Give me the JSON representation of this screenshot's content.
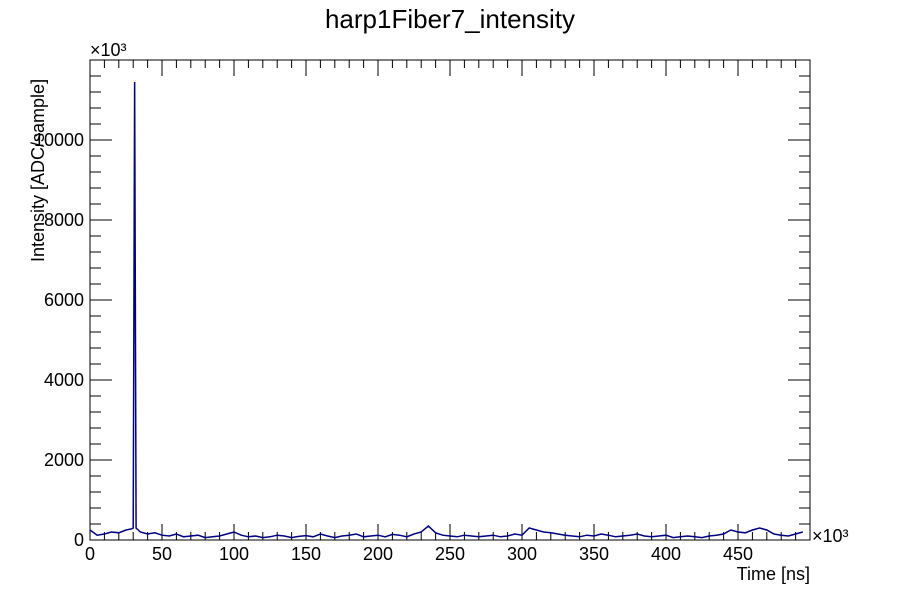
{
  "chart_data": {
    "type": "line",
    "title": "harp1Fiber7_intensity",
    "x_label": "Time [ns]",
    "y_label": "Intensity [ADC/sample]",
    "x_exponent": "×10³",
    "y_exponent": "×10³",
    "x": [
      0,
      5,
      10,
      15,
      20,
      25,
      29,
      30,
      31,
      32,
      35,
      40,
      45,
      50,
      55,
      60,
      65,
      70,
      75,
      80,
      85,
      90,
      95,
      100,
      105,
      110,
      115,
      120,
      125,
      130,
      135,
      140,
      145,
      150,
      155,
      160,
      165,
      170,
      175,
      180,
      185,
      190,
      195,
      200,
      205,
      210,
      215,
      220,
      225,
      230,
      235,
      240,
      245,
      250,
      255,
      260,
      265,
      270,
      275,
      280,
      285,
      290,
      295,
      300,
      305,
      310,
      315,
      320,
      325,
      330,
      335,
      340,
      345,
      350,
      355,
      360,
      365,
      370,
      375,
      380,
      385,
      390,
      395,
      400,
      405,
      410,
      415,
      420,
      425,
      430,
      435,
      440,
      445,
      450,
      455,
      460,
      465,
      470,
      475,
      480,
      485,
      490,
      495
    ],
    "series": [
      {
        "name": "harp1Fiber7_intensity",
        "color": "#000080",
        "values": [
          250,
          120,
          150,
          200,
          180,
          250,
          280,
          300,
          11450,
          300,
          200,
          150,
          180,
          120,
          100,
          150,
          80,
          100,
          120,
          60,
          80,
          100,
          150,
          200,
          120,
          80,
          100,
          60,
          80,
          120,
          100,
          60,
          90,
          110,
          80,
          150,
          100,
          60,
          100,
          120,
          150,
          80,
          100,
          120,
          80,
          140,
          120,
          80,
          150,
          200,
          350,
          180,
          120,
          100,
          80,
          120,
          100,
          80,
          100,
          120,
          80,
          100,
          150,
          120,
          300,
          250,
          200,
          180,
          150,
          120,
          100,
          80,
          120,
          100,
          150,
          120,
          80,
          100,
          120,
          150,
          100,
          80,
          100,
          120,
          60,
          80,
          100,
          80,
          60,
          100,
          120,
          150,
          250,
          200,
          180,
          250,
          300,
          250,
          150,
          120,
          100,
          150,
          200
        ]
      }
    ],
    "xlim": [
      0,
      500
    ],
    "ylim": [
      0,
      12000
    ],
    "xticks": [
      0,
      50,
      100,
      150,
      200,
      250,
      300,
      350,
      400,
      450
    ],
    "yticks": [
      0,
      2000,
      4000,
      6000,
      8000,
      10000
    ]
  }
}
